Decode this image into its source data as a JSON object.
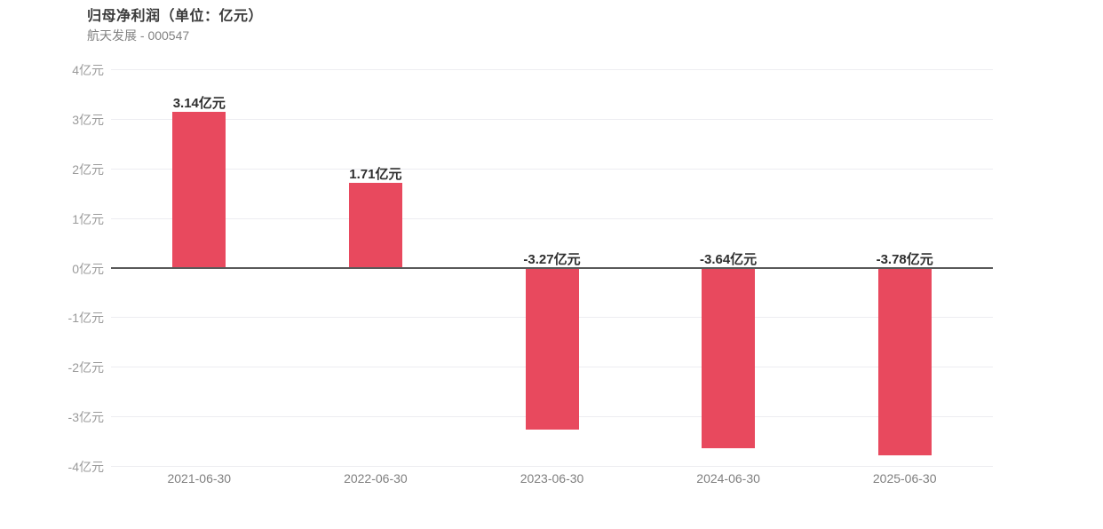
{
  "header": {
    "title": "归母净利润（单位：亿元）",
    "subtitle": "航天发展 - 000547"
  },
  "chart_data": {
    "type": "bar",
    "title": "归母净利润（单位：亿元）",
    "subtitle": "航天发展 - 000547",
    "categories": [
      "2021-06-30",
      "2022-06-30",
      "2023-06-30",
      "2024-06-30",
      "2025-06-30"
    ],
    "values": [
      3.14,
      1.71,
      -3.27,
      -3.64,
      -3.78
    ],
    "data_labels": [
      "3.14亿元",
      "1.71亿元",
      "-3.27亿元",
      "-3.64亿元",
      "-3.78亿元"
    ],
    "unit": "亿元",
    "ylim": [
      -4,
      4
    ],
    "ytick_step": 1,
    "ytick_labels": [
      "4亿元",
      "3亿元",
      "2亿元",
      "1亿元",
      "0亿元",
      "-1亿元",
      "-2亿元",
      "-3亿元",
      "-4亿元"
    ],
    "ytick_values": [
      4,
      3,
      2,
      1,
      0,
      -1,
      -2,
      -3,
      -4
    ],
    "grid": true,
    "legend_position": "none",
    "colors": {
      "bar": "#e8495e",
      "grid_line": "#ededf1",
      "zero_line": "#595959",
      "title": "#3b3b3b",
      "subtitle": "#828282",
      "y_tick_label": "#9a9a9a",
      "x_tick_label": "#7f7f7f",
      "data_label": "#2e2e2e",
      "background": "#ffffff"
    }
  }
}
